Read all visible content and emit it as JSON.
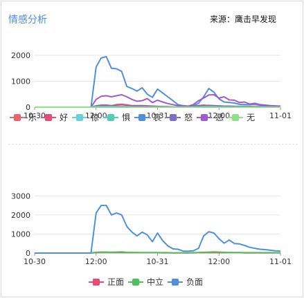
{
  "header": {
    "title": "情感分析",
    "source": "来源：鹰击早发现"
  },
  "chart_data": [
    {
      "type": "line",
      "x_ticks": [
        "10-30",
        "12:00",
        "10-31",
        "12:00",
        "11-01"
      ],
      "y_ticks": [
        "0",
        "1000",
        "2000"
      ],
      "ylim": [
        0,
        2400
      ],
      "n_points": 49,
      "grid": true,
      "legend_position": "bottom",
      "series": [
        {
          "name": "乐",
          "color": "#e8646e",
          "values": [
            0,
            0,
            0,
            0,
            0,
            0,
            0,
            0,
            0,
            0,
            0,
            0,
            20,
            30,
            40,
            30,
            20,
            30,
            30,
            30,
            20,
            10,
            10,
            10,
            10,
            10,
            10,
            0,
            0,
            0,
            0,
            0,
            10,
            20,
            30,
            40,
            30,
            20,
            20,
            20,
            10,
            10,
            10,
            10,
            10,
            0,
            0,
            0,
            0
          ]
        },
        {
          "name": "好",
          "color": "#e84a7a",
          "values": [
            0,
            0,
            0,
            0,
            0,
            0,
            0,
            0,
            0,
            0,
            0,
            0,
            50,
            80,
            80,
            60,
            100,
            110,
            90,
            60,
            60,
            60,
            50,
            40,
            30,
            20,
            20,
            10,
            10,
            20,
            30,
            30,
            60,
            80,
            60,
            50,
            40,
            30,
            30,
            30,
            20,
            20,
            20,
            20,
            20,
            20,
            10,
            10,
            10
          ]
        },
        {
          "name": "惊",
          "color": "#6ad0dc",
          "values": [
            0,
            0,
            0,
            0,
            0,
            0,
            0,
            0,
            0,
            0,
            0,
            0,
            0,
            0,
            0,
            0,
            0,
            0,
            0,
            0,
            0,
            0,
            0,
            0,
            0,
            0,
            0,
            0,
            0,
            0,
            0,
            0,
            0,
            0,
            0,
            0,
            0,
            0,
            0,
            0,
            0,
            0,
            0,
            0,
            0,
            0,
            0,
            0,
            0
          ]
        },
        {
          "name": "惧",
          "color": "#4fd0b0",
          "values": [
            0,
            0,
            0,
            0,
            0,
            0,
            0,
            0,
            0,
            0,
            0,
            0,
            0,
            0,
            0,
            0,
            0,
            0,
            0,
            0,
            0,
            0,
            0,
            0,
            0,
            0,
            0,
            0,
            0,
            0,
            0,
            0,
            0,
            0,
            0,
            0,
            0,
            0,
            0,
            0,
            0,
            0,
            0,
            0,
            0,
            0,
            0,
            0,
            0
          ]
        },
        {
          "name": "哀",
          "color": "#4f8fdc",
          "values": [
            0,
            0,
            0,
            0,
            0,
            0,
            0,
            0,
            0,
            0,
            0,
            0,
            1550,
            1900,
            1950,
            1500,
            1480,
            1380,
            800,
            720,
            620,
            750,
            500,
            380,
            700,
            550,
            400,
            250,
            100,
            60,
            40,
            50,
            150,
            400,
            720,
            580,
            320,
            200,
            180,
            160,
            110,
            100,
            100,
            110,
            80,
            60,
            50,
            40,
            30
          ]
        },
        {
          "name": "怒",
          "color": "#7a70c8",
          "values": [
            0,
            0,
            0,
            0,
            0,
            0,
            0,
            0,
            0,
            0,
            0,
            0,
            50,
            60,
            60,
            50,
            50,
            40,
            40,
            40,
            40,
            30,
            30,
            30,
            30,
            20,
            20,
            10,
            10,
            10,
            20,
            20,
            40,
            60,
            70,
            60,
            50,
            40,
            40,
            30,
            30,
            30,
            30,
            20,
            20,
            20,
            10,
            10,
            10
          ]
        },
        {
          "name": "恶",
          "color": "#a05ad0",
          "values": [
            0,
            0,
            0,
            0,
            0,
            0,
            0,
            0,
            0,
            0,
            0,
            0,
            300,
            420,
            440,
            400,
            440,
            480,
            400,
            300,
            230,
            250,
            330,
            180,
            270,
            200,
            140,
            100,
            60,
            40,
            40,
            100,
            250,
            350,
            470,
            480,
            350,
            400,
            280,
            270,
            180,
            200,
            120,
            150,
            100,
            80,
            60,
            50,
            40
          ]
        },
        {
          "name": "无",
          "color": "#8fe08a",
          "values": [
            0,
            0,
            0,
            0,
            0,
            0,
            0,
            0,
            0,
            0,
            0,
            0,
            10,
            10,
            10,
            10,
            10,
            10,
            10,
            0,
            0,
            0,
            0,
            0,
            0,
            0,
            0,
            0,
            0,
            0,
            0,
            0,
            0,
            10,
            10,
            10,
            0,
            0,
            0,
            0,
            0,
            0,
            0,
            0,
            0,
            0,
            0,
            0,
            0
          ]
        }
      ]
    },
    {
      "type": "line",
      "x_ticks": [
        "10-30",
        "12:00",
        "10-31",
        "12:00",
        "11-01"
      ],
      "y_ticks": [
        "0",
        "1000",
        "2000",
        "3000"
      ],
      "ylim": [
        0,
        3300
      ],
      "n_points": 49,
      "grid": true,
      "legend_position": "bottom",
      "series": [
        {
          "name": "正面",
          "color": "#e84a7a",
          "values": [
            0,
            0,
            0,
            0,
            0,
            0,
            0,
            0,
            0,
            0,
            0,
            0,
            40,
            50,
            50,
            40,
            40,
            30,
            30,
            30,
            20,
            20,
            20,
            20,
            20,
            10,
            10,
            10,
            10,
            10,
            10,
            10,
            20,
            30,
            30,
            30,
            20,
            20,
            20,
            20,
            20,
            10,
            10,
            10,
            10,
            10,
            10,
            10,
            10
          ]
        },
        {
          "name": "中立",
          "color": "#4fc05a",
          "values": [
            0,
            0,
            0,
            0,
            0,
            0,
            0,
            0,
            0,
            0,
            0,
            0,
            20,
            30,
            40,
            40,
            50,
            60,
            40,
            30,
            30,
            20,
            20,
            20,
            20,
            20,
            20,
            10,
            10,
            10,
            10,
            20,
            30,
            40,
            50,
            60,
            50,
            40,
            30,
            30,
            30,
            20,
            20,
            20,
            20,
            20,
            20,
            20,
            10
          ]
        },
        {
          "name": "负面",
          "color": "#4f8fdc",
          "values": [
            0,
            0,
            0,
            0,
            0,
            0,
            0,
            0,
            0,
            0,
            0,
            0,
            2100,
            2500,
            2500,
            2000,
            2100,
            2000,
            1400,
            1100,
            900,
            1100,
            950,
            600,
            1050,
            650,
            380,
            220,
            200,
            100,
            100,
            120,
            250,
            900,
            1120,
            1050,
            750,
            520,
            680,
            500,
            480,
            400,
            300,
            250,
            200,
            180,
            150,
            120,
            100
          ]
        }
      ]
    }
  ]
}
